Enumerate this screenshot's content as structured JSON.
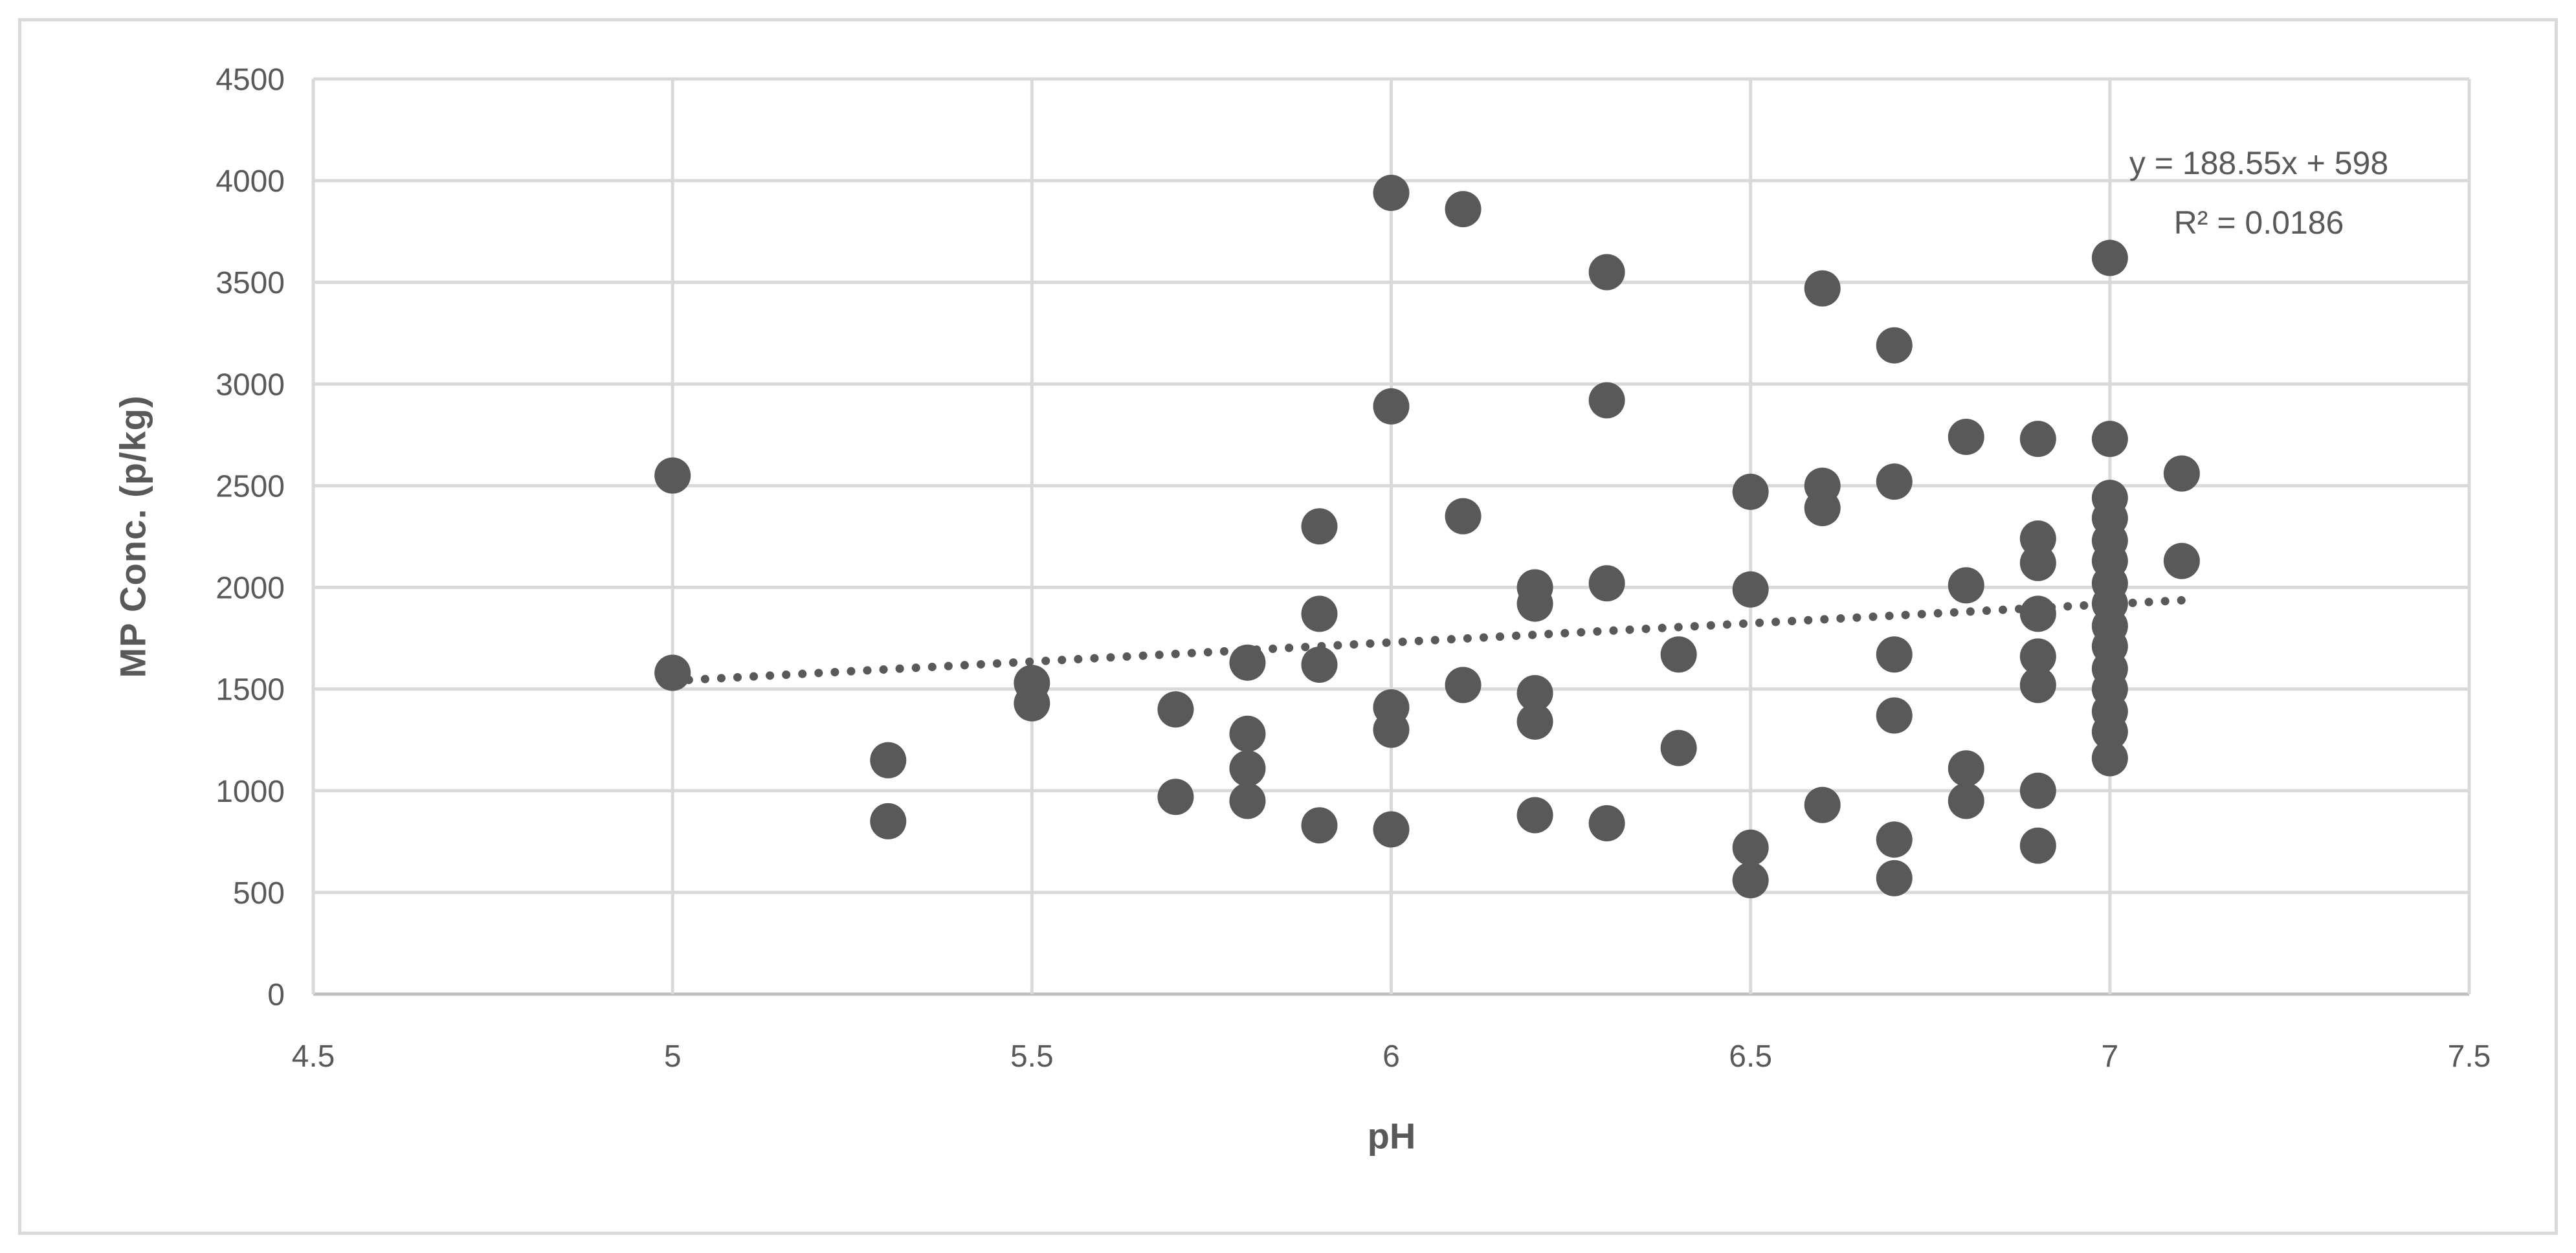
{
  "chart_data": {
    "type": "scatter",
    "title": "",
    "xlabel": "pH",
    "ylabel": "MP Conc. (p/kg)",
    "x_axis": {
      "min": 4.5,
      "max": 7.5,
      "step": 0.5,
      "ticks": [
        "4.5",
        "5",
        "5.5",
        "6",
        "6.5",
        "7",
        "7.5"
      ]
    },
    "y_axis": {
      "min": 0,
      "max": 4500,
      "step": 500,
      "ticks": [
        "0",
        "500",
        "1000",
        "1500",
        "2000",
        "2500",
        "3000",
        "3500",
        "4000",
        "4500"
      ]
    },
    "grid": true,
    "legend": false,
    "points": [
      [
        5.0,
        2550
      ],
      [
        5.0,
        1580
      ],
      [
        5.3,
        1150
      ],
      [
        5.3,
        850
      ],
      [
        5.5,
        1530
      ],
      [
        5.5,
        1430
      ],
      [
        5.7,
        1400
      ],
      [
        5.7,
        970
      ],
      [
        5.8,
        1630
      ],
      [
        5.8,
        1280
      ],
      [
        5.8,
        1110
      ],
      [
        5.8,
        950
      ],
      [
        5.9,
        2300
      ],
      [
        5.9,
        1870
      ],
      [
        5.9,
        1620
      ],
      [
        5.9,
        830
      ],
      [
        6.0,
        3940
      ],
      [
        6.0,
        2890
      ],
      [
        6.0,
        1410
      ],
      [
        6.0,
        1300
      ],
      [
        6.0,
        810
      ],
      [
        6.1,
        3860
      ],
      [
        6.1,
        2350
      ],
      [
        6.1,
        1520
      ],
      [
        6.2,
        2000
      ],
      [
        6.2,
        1920
      ],
      [
        6.2,
        1480
      ],
      [
        6.2,
        1340
      ],
      [
        6.2,
        880
      ],
      [
        6.3,
        3550
      ],
      [
        6.3,
        2920
      ],
      [
        6.3,
        2020
      ],
      [
        6.3,
        840
      ],
      [
        6.4,
        1670
      ],
      [
        6.4,
        1210
      ],
      [
        6.5,
        2470
      ],
      [
        6.5,
        1990
      ],
      [
        6.5,
        720
      ],
      [
        6.5,
        560
      ],
      [
        6.6,
        3470
      ],
      [
        6.6,
        2500
      ],
      [
        6.6,
        2390
      ],
      [
        6.6,
        930
      ],
      [
        6.7,
        3190
      ],
      [
        6.7,
        2520
      ],
      [
        6.7,
        1670
      ],
      [
        6.7,
        1370
      ],
      [
        6.7,
        760
      ],
      [
        6.7,
        570
      ],
      [
        6.8,
        2740
      ],
      [
        6.8,
        2010
      ],
      [
        6.8,
        1110
      ],
      [
        6.8,
        950
      ],
      [
        6.9,
        2730
      ],
      [
        6.9,
        2240
      ],
      [
        6.9,
        2120
      ],
      [
        6.9,
        1870
      ],
      [
        6.9,
        1660
      ],
      [
        6.9,
        1520
      ],
      [
        6.9,
        1000
      ],
      [
        6.9,
        730
      ],
      [
        7.0,
        3620
      ],
      [
        7.0,
        2730
      ],
      [
        7.0,
        2440
      ],
      [
        7.0,
        2340
      ],
      [
        7.0,
        2230
      ],
      [
        7.0,
        2130
      ],
      [
        7.0,
        2020
      ],
      [
        7.0,
        1920
      ],
      [
        7.0,
        1810
      ],
      [
        7.0,
        1710
      ],
      [
        7.0,
        1600
      ],
      [
        7.0,
        1500
      ],
      [
        7.0,
        1390
      ],
      [
        7.0,
        1290
      ],
      [
        7.0,
        1160
      ],
      [
        7.1,
        2560
      ],
      [
        7.1,
        2130
      ]
    ],
    "trendline": {
      "type": "linear",
      "slope": 188.55,
      "intercept": 598,
      "x_start": 5.0,
      "x_end": 7.1,
      "style": "dotted",
      "equation": "y = 188.55x + 598",
      "r_squared": "R² = 0.0186"
    },
    "colors": {
      "marker": "#595959",
      "grid": "#D9D9D9",
      "axis": "#BFBFBF",
      "text": "#595959",
      "border": "#D9D9D9",
      "background": "#FFFFFF"
    }
  }
}
